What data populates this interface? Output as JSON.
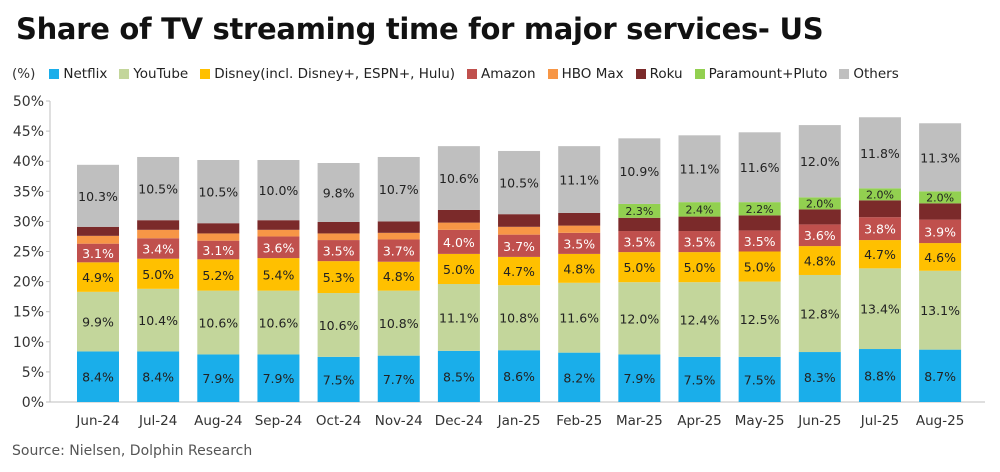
{
  "title": "Share of TV streaming time for major services- US",
  "source": "Source:  Nielsen, Dolphin Research",
  "chart_data": {
    "type": "bar",
    "stacked": true,
    "title": "Share of TV streaming time for major services- US",
    "unit_label": "(%)",
    "ylim": [
      0,
      50
    ],
    "yticks": [
      "0%",
      "5%",
      "10%",
      "15%",
      "20%",
      "25%",
      "30%",
      "35%",
      "40%",
      "45%",
      "50%"
    ],
    "legend_position": "top",
    "categories": [
      "Jun-24",
      "Jul-24",
      "Aug-24",
      "Sep-24",
      "Oct-24",
      "Nov-24",
      "Dec-24",
      "Jan-25",
      "Feb-25",
      "Mar-25",
      "Apr-25",
      "May-25",
      "Jun-25",
      "Jul-25",
      "Aug-25"
    ],
    "series": [
      {
        "name": "Netflix",
        "color": "#1aaeea",
        "labeled": true,
        "values": [
          8.4,
          8.4,
          7.9,
          7.9,
          7.5,
          7.7,
          8.5,
          8.6,
          8.2,
          7.9,
          7.5,
          7.5,
          8.3,
          8.8,
          8.7
        ]
      },
      {
        "name": "YouTube",
        "color": "#c3d69b",
        "labeled": true,
        "values": [
          9.9,
          10.4,
          10.6,
          10.6,
          10.6,
          10.8,
          11.1,
          10.8,
          11.6,
          12.0,
          12.4,
          12.5,
          12.8,
          13.4,
          13.1
        ]
      },
      {
        "name": "Disney(incl. Disney+, ESPN+, Hulu)",
        "color": "#ffc000",
        "labeled": true,
        "values": [
          4.9,
          5.0,
          5.2,
          5.4,
          5.3,
          4.8,
          5.0,
          4.7,
          4.8,
          5.0,
          5.0,
          5.0,
          4.8,
          4.7,
          4.6
        ]
      },
      {
        "name": "Amazon",
        "color": "#c0504d",
        "labeled": true,
        "labelColor": "#ffffff",
        "values": [
          3.1,
          3.4,
          3.1,
          3.6,
          3.5,
          3.7,
          4.0,
          3.7,
          3.5,
          3.5,
          3.5,
          3.5,
          3.6,
          3.8,
          3.9
        ]
      },
      {
        "name": "HBO Max",
        "color": "#f79646",
        "labeled": false,
        "values": [
          1.3,
          1.4,
          1.2,
          1.1,
          1.1,
          1.1,
          1.2,
          1.3,
          1.2,
          0,
          0,
          0,
          0,
          0,
          0
        ]
      },
      {
        "name": "Roku",
        "color": "#7b2a2a",
        "labeled": false,
        "values": [
          1.5,
          1.6,
          1.7,
          1.6,
          1.9,
          1.9,
          2.1,
          2.1,
          2.1,
          2.2,
          2.4,
          2.5,
          2.5,
          2.8,
          2.7
        ]
      },
      {
        "name": "Paramount+Pluto",
        "color": "#92d050",
        "labeled": true,
        "values": [
          0,
          0,
          0,
          0,
          0,
          0,
          0,
          0,
          0,
          2.3,
          2.4,
          2.2,
          2.0,
          2.0,
          2.0
        ]
      },
      {
        "name": "Others",
        "color": "#bfbfbf",
        "labeled": true,
        "values": [
          10.3,
          10.5,
          10.5,
          10.0,
          9.8,
          10.7,
          10.6,
          10.5,
          11.1,
          10.9,
          11.1,
          11.6,
          12.0,
          11.8,
          11.3
        ]
      }
    ]
  }
}
